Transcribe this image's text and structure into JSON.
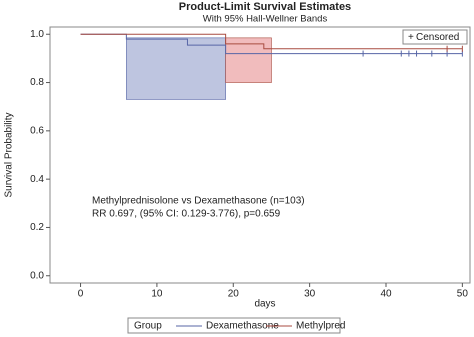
{
  "chart_data": {
    "type": "km",
    "title": "Product-Limit Survival Estimates",
    "subtitle": "With 95% Hall-Wellner Bands",
    "xlabel": "days",
    "ylabel": "Survival Probability",
    "xlim": [
      -4,
      51
    ],
    "ylim": [
      -0.03,
      1.03
    ],
    "xticks": [
      0,
      10,
      20,
      30,
      40,
      50
    ],
    "yticks": [
      {
        "value": 0,
        "label": "0.0"
      },
      0.2,
      0.4,
      0.6,
      0.8,
      {
        "value": 1,
        "label": "1.0"
      }
    ],
    "annotations": [
      "Methylprednisolone vs Dexamethasone (n=103)",
      "RR 0.697, (95% CI: 0.129-3.776), p=0.659"
    ],
    "censored_label": "Censored",
    "legend_title": "Group",
    "series": [
      {
        "name": "Dexamethasone",
        "color": "#5766a6",
        "band_color": "#b3bbdb",
        "x": [
          0,
          6,
          14,
          19,
          50
        ],
        "values": [
          1,
          0.98,
          0.955,
          0.92,
          0.92
        ],
        "band": {
          "x": [
            6,
            19
          ],
          "lower": 0.73,
          "upper": 0.985
        },
        "censored": [
          37,
          42,
          43,
          44,
          46,
          48,
          50
        ]
      },
      {
        "name": "Methylpred",
        "color": "#a84b40",
        "band_color": "#eeb0b2",
        "x": [
          0,
          19,
          24,
          50
        ],
        "values": [
          1,
          0.96,
          0.94,
          0.94
        ],
        "band": {
          "x": [
            19,
            25
          ],
          "lower": 0.8,
          "upper": 0.985
        },
        "censored": [
          48,
          50
        ]
      }
    ]
  }
}
